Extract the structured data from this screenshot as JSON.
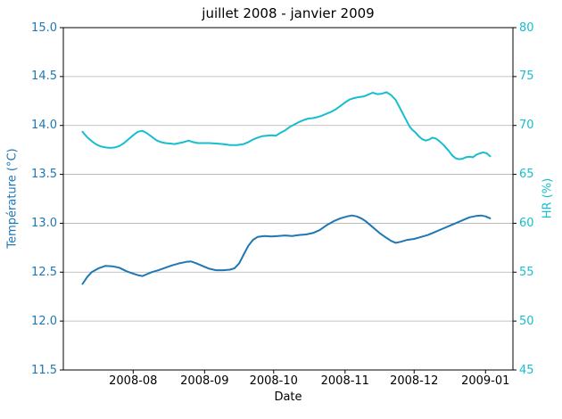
{
  "chart_data": {
    "type": "line",
    "title": "juillet 2008 - janvier 2009",
    "xlabel": "Date",
    "grid": {
      "horizontal": true,
      "vertical": false,
      "color": "#b0b0b0"
    },
    "x_ticks": {
      "labels": [
        "2008-08",
        "2008-09",
        "2008-10",
        "2008-11",
        "2008-12",
        "2009-01"
      ],
      "days_from_2008_07_01": [
        31,
        62,
        92,
        123,
        153,
        184
      ]
    },
    "x_domain_days": [
      0.67,
      195.9
    ],
    "y_left": {
      "label": "Température (°C)",
      "color": "#1f77b4",
      "min": 11.5,
      "max": 15.0,
      "tick_values": [
        11.5,
        12.0,
        12.5,
        13.0,
        13.5,
        14.0,
        14.5,
        15.0
      ],
      "tick_labels": [
        "11.5",
        "12.0",
        "12.5",
        "13.0",
        "13.5",
        "14.0",
        "14.5",
        "15.0"
      ]
    },
    "y_right": {
      "label": "HR (%)",
      "color": "#17becf",
      "min": 45,
      "max": 80,
      "tick_values": [
        45,
        50,
        55,
        60,
        65,
        70,
        75,
        80
      ],
      "tick_labels": [
        "45",
        "50",
        "55",
        "60",
        "65",
        "70",
        "75",
        "80"
      ]
    },
    "series": [
      {
        "name": "Température (°C)",
        "axis": "left",
        "color": "#1f77b4",
        "line_width": 2,
        "points": [
          [
            9,
            12.38
          ],
          [
            11,
            12.45
          ],
          [
            13,
            12.5
          ],
          [
            16,
            12.54
          ],
          [
            19,
            12.565
          ],
          [
            22,
            12.56
          ],
          [
            25,
            12.545
          ],
          [
            28,
            12.51
          ],
          [
            31,
            12.485
          ],
          [
            33,
            12.47
          ],
          [
            35,
            12.46
          ],
          [
            37,
            12.48
          ],
          [
            39,
            12.5
          ],
          [
            42,
            12.52
          ],
          [
            45,
            12.545
          ],
          [
            48,
            12.57
          ],
          [
            51,
            12.59
          ],
          [
            54,
            12.605
          ],
          [
            56,
            12.61
          ],
          [
            58,
            12.595
          ],
          [
            61,
            12.565
          ],
          [
            64,
            12.535
          ],
          [
            67,
            12.52
          ],
          [
            70,
            12.52
          ],
          [
            73,
            12.525
          ],
          [
            75,
            12.54
          ],
          [
            77,
            12.59
          ],
          [
            79,
            12.68
          ],
          [
            81,
            12.77
          ],
          [
            83,
            12.83
          ],
          [
            85,
            12.86
          ],
          [
            88,
            12.87
          ],
          [
            91,
            12.865
          ],
          [
            94,
            12.87
          ],
          [
            97,
            12.875
          ],
          [
            100,
            12.87
          ],
          [
            103,
            12.88
          ],
          [
            106,
            12.885
          ],
          [
            109,
            12.9
          ],
          [
            112,
            12.93
          ],
          [
            115,
            12.98
          ],
          [
            118,
            13.02
          ],
          [
            121,
            13.05
          ],
          [
            124,
            13.07
          ],
          [
            126,
            13.08
          ],
          [
            128,
            13.07
          ],
          [
            130,
            13.05
          ],
          [
            132,
            13.02
          ],
          [
            135,
            12.96
          ],
          [
            138,
            12.9
          ],
          [
            141,
            12.85
          ],
          [
            143,
            12.82
          ],
          [
            145,
            12.8
          ],
          [
            147,
            12.81
          ],
          [
            150,
            12.83
          ],
          [
            153,
            12.84
          ],
          [
            156,
            12.86
          ],
          [
            159,
            12.88
          ],
          [
            162,
            12.91
          ],
          [
            165,
            12.94
          ],
          [
            168,
            12.97
          ],
          [
            171,
            13.0
          ],
          [
            174,
            13.03
          ],
          [
            177,
            13.06
          ],
          [
            180,
            13.075
          ],
          [
            182,
            13.08
          ],
          [
            184,
            13.07
          ],
          [
            186,
            13.05
          ]
        ]
      },
      {
        "name": "HR (%)",
        "axis": "right",
        "color": "#17becf",
        "line_width": 2,
        "points": [
          [
            9,
            69.35
          ],
          [
            11,
            68.8
          ],
          [
            13,
            68.4
          ],
          [
            15,
            68.05
          ],
          [
            17,
            67.85
          ],
          [
            19,
            67.75
          ],
          [
            21,
            67.7
          ],
          [
            23,
            67.75
          ],
          [
            25,
            67.9
          ],
          [
            27,
            68.2
          ],
          [
            29,
            68.6
          ],
          [
            31,
            69.0
          ],
          [
            33,
            69.35
          ],
          [
            35,
            69.45
          ],
          [
            37,
            69.2
          ],
          [
            39,
            68.85
          ],
          [
            41,
            68.5
          ],
          [
            43,
            68.3
          ],
          [
            45,
            68.2
          ],
          [
            47,
            68.15
          ],
          [
            49,
            68.1
          ],
          [
            51,
            68.2
          ],
          [
            53,
            68.3
          ],
          [
            55,
            68.45
          ],
          [
            57,
            68.3
          ],
          [
            59,
            68.2
          ],
          [
            61,
            68.2
          ],
          [
            64,
            68.2
          ],
          [
            67,
            68.15
          ],
          [
            70,
            68.1
          ],
          [
            73,
            68.0
          ],
          [
            76,
            68.0
          ],
          [
            79,
            68.1
          ],
          [
            81,
            68.3
          ],
          [
            83,
            68.55
          ],
          [
            85,
            68.75
          ],
          [
            87,
            68.9
          ],
          [
            89,
            68.95
          ],
          [
            91,
            69.0
          ],
          [
            93,
            68.95
          ],
          [
            95,
            69.25
          ],
          [
            97,
            69.5
          ],
          [
            99,
            69.85
          ],
          [
            101,
            70.1
          ],
          [
            103,
            70.35
          ],
          [
            105,
            70.55
          ],
          [
            107,
            70.7
          ],
          [
            109,
            70.75
          ],
          [
            111,
            70.85
          ],
          [
            113,
            71.0
          ],
          [
            115,
            71.2
          ],
          [
            117,
            71.4
          ],
          [
            119,
            71.65
          ],
          [
            121,
            72.0
          ],
          [
            123,
            72.35
          ],
          [
            125,
            72.65
          ],
          [
            127,
            72.8
          ],
          [
            129,
            72.9
          ],
          [
            131,
            72.95
          ],
          [
            133,
            73.15
          ],
          [
            135,
            73.35
          ],
          [
            137,
            73.2
          ],
          [
            139,
            73.25
          ],
          [
            141,
            73.4
          ],
          [
            143,
            73.1
          ],
          [
            145,
            72.6
          ],
          [
            147,
            71.7
          ],
          [
            149,
            70.8
          ],
          [
            151,
            69.9
          ],
          [
            152,
            69.6
          ],
          [
            153.5,
            69.3
          ],
          [
            155,
            68.9
          ],
          [
            156.5,
            68.6
          ],
          [
            158,
            68.45
          ],
          [
            159.5,
            68.55
          ],
          [
            161,
            68.75
          ],
          [
            162.5,
            68.65
          ],
          [
            164,
            68.4
          ],
          [
            166,
            67.95
          ],
          [
            168,
            67.4
          ],
          [
            169.5,
            66.95
          ],
          [
            171,
            66.65
          ],
          [
            172.5,
            66.55
          ],
          [
            174,
            66.6
          ],
          [
            175.5,
            66.75
          ],
          [
            177,
            66.8
          ],
          [
            178.5,
            66.75
          ],
          [
            180,
            67.0
          ],
          [
            181.5,
            67.15
          ],
          [
            183,
            67.25
          ],
          [
            184.5,
            67.15
          ],
          [
            186,
            66.85
          ]
        ]
      }
    ]
  }
}
